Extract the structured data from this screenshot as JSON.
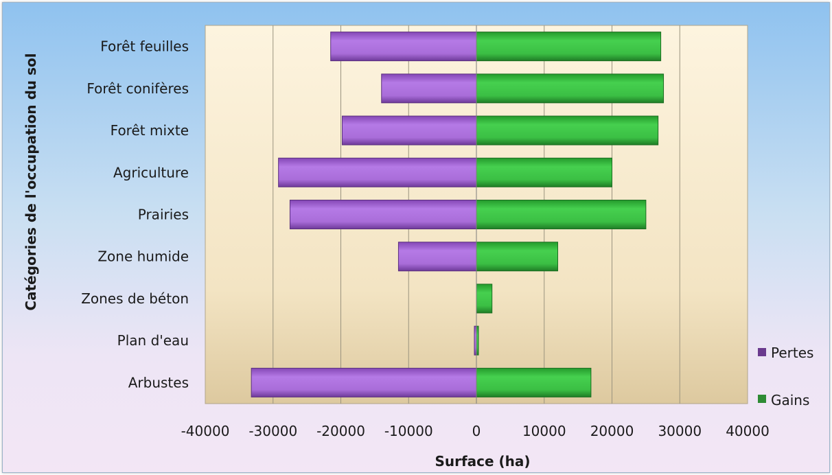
{
  "chart_data": {
    "type": "bar",
    "orientation": "horizontal",
    "categories": [
      "Forêt feuilles",
      "Forêt conifères",
      "Forêt mixte",
      "Agriculture",
      "Prairies",
      "Zone humide",
      "Zones de béton",
      "Plan d'eau",
      "Arbustes"
    ],
    "series": [
      {
        "name": "Pertes",
        "color": "#a86ad8",
        "values": [
          -21500,
          -14000,
          -19800,
          -29200,
          -27500,
          -11500,
          0,
          -300,
          -33200
        ]
      },
      {
        "name": "Gains",
        "color": "#3cc445",
        "values": [
          27200,
          27600,
          26800,
          20000,
          25000,
          12000,
          2300,
          300,
          16900
        ]
      }
    ],
    "xlim": [
      -40000,
      40000
    ],
    "xticks": [
      "-40000",
      "-30000",
      "-20000",
      "-10000",
      "0",
      "10000",
      "20000",
      "30000",
      "40000"
    ],
    "xlabel": "Surface (ha)",
    "ylabel": "Catégories de l'occupation du sol",
    "grid": "vertical",
    "legend_position": "right"
  }
}
